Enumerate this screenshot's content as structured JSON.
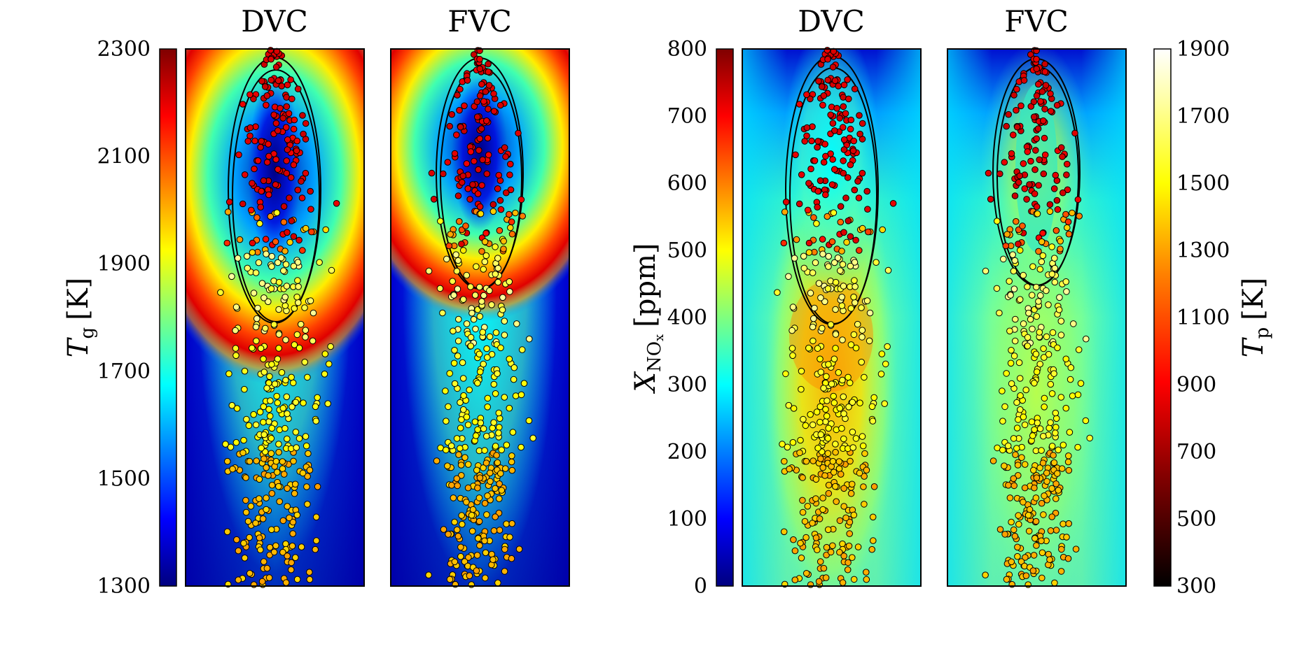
{
  "colors": {
    "jet": [
      "#00007f",
      "#0000ff",
      "#007fff",
      "#00ffff",
      "#7fff7f",
      "#ffff00",
      "#ff7f00",
      "#ff0000",
      "#7f0000"
    ],
    "hot": [
      "#000000",
      "#800000",
      "#ff0000",
      "#ff8000",
      "#ffff00",
      "#ffffa0",
      "#ffffff"
    ],
    "frame": "#000000"
  },
  "left_axis": {
    "ticks": [
      "2300",
      "2100",
      "1900",
      "1700",
      "1500",
      "1300"
    ],
    "label_symbol": "T",
    "label_sub": "g",
    "label_unit": "[K]"
  },
  "right_axis": {
    "ticks": [
      "800",
      "700",
      "600",
      "500",
      "400",
      "300",
      "200",
      "100",
      "0"
    ],
    "label_symbol": "X",
    "label_sub": "NO",
    "label_subsub": "x",
    "label_unit": "[ppm]"
  },
  "tp_axis": {
    "ticks": [
      "1900",
      "1700",
      "1500",
      "1300",
      "1100",
      "900",
      "700",
      "500",
      "300"
    ],
    "label_symbol": "T",
    "label_sub": "p",
    "label_unit": "[K]"
  },
  "chart_data": [
    {
      "type": "heatmap",
      "panel": "DVC",
      "field": "gas temperature",
      "title": "DVC",
      "ylabel": "Tg [K]",
      "ylim": [
        1300,
        2300
      ],
      "particles_colored_by": "Tp [K]",
      "particle_temperature_range": [
        300,
        1900
      ]
    },
    {
      "type": "heatmap",
      "panel": "FVC",
      "field": "gas temperature",
      "title": "FVC",
      "ylim": [
        1300,
        2300
      ],
      "particles_colored_by": "Tp [K]",
      "particle_temperature_range": [
        300,
        1900
      ]
    },
    {
      "type": "heatmap",
      "panel": "DVC",
      "field": "NOx mole fraction",
      "title": "DVC",
      "ylabel": "XNOx [ppm]",
      "ylim": [
        0,
        800
      ],
      "particles_colored_by": "Tp [K]",
      "particle_temperature_range": [
        300,
        1900
      ]
    },
    {
      "type": "heatmap",
      "panel": "FVC",
      "field": "NOx mole fraction",
      "title": "FVC",
      "ylim": [
        0,
        800
      ],
      "particles_colored_by": "Tp [K]",
      "particle_temperature_range": [
        300,
        1900
      ]
    }
  ],
  "panels": [
    {
      "title": "DVC"
    },
    {
      "title": "FVC"
    },
    {
      "title": "DVC"
    },
    {
      "title": "FVC"
    }
  ]
}
